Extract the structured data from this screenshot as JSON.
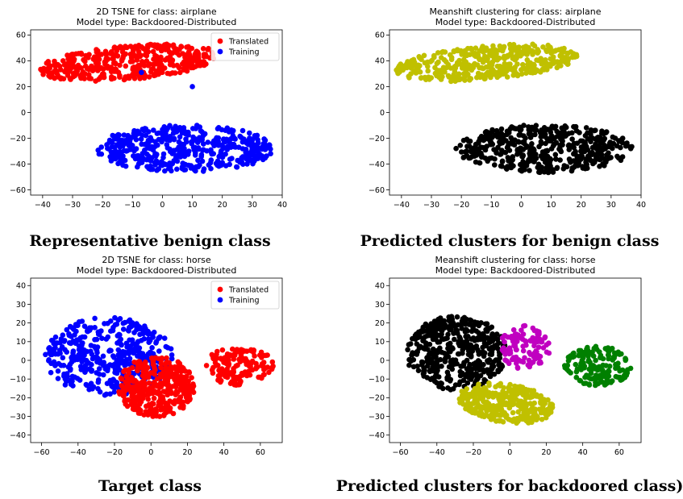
{
  "colors": {
    "red": "#ff0000",
    "blue": "#0000ff",
    "yellow": "#c0c000",
    "black": "#000000",
    "magenta": "#c000c0",
    "green": "#008000"
  },
  "captions": {
    "a": "Representative benign class",
    "b": "Predicted clusters for benign class",
    "c": "Target class",
    "d": "Predicted clusters for backdoored class)"
  },
  "chart_data": [
    {
      "type": "scatter",
      "title": "2D TSNE for class: airplane",
      "subtitle": "Model type: Backdoored-Distributed",
      "xlim": [
        -44,
        40
      ],
      "ylim": [
        -64,
        64
      ],
      "xticks": [
        -40,
        -30,
        -20,
        -10,
        0,
        10,
        20,
        30,
        40
      ],
      "yticks": [
        -60,
        -40,
        -20,
        0,
        20,
        40,
        60
      ],
      "legend": {
        "position": "top-right",
        "entries": [
          "Translated",
          "Training"
        ]
      },
      "clusters": [
        {
          "name": "Translated",
          "color": "red",
          "n": 420,
          "x_range": [
            -42,
            19
          ],
          "y_range": [
            17,
            60
          ],
          "skew": 0.48
        },
        {
          "name": "Training",
          "color": "blue",
          "n": 460,
          "x_range": [
            -22,
            37
          ],
          "y_range": [
            -58,
            2
          ],
          "skew": 0.0
        }
      ],
      "outliers": [
        {
          "x": -7,
          "y": 31,
          "color": "blue"
        },
        {
          "x": 10,
          "y": 20,
          "color": "blue"
        }
      ]
    },
    {
      "type": "scatter",
      "title": "Meanshift clustering for class: airplane",
      "subtitle": "Model type: Backdoored-Distributed",
      "xlim": [
        -44,
        40
      ],
      "ylim": [
        -64,
        64
      ],
      "xticks": [
        -40,
        -30,
        -20,
        -10,
        0,
        10,
        20,
        30,
        40
      ],
      "yticks": [
        -60,
        -40,
        -20,
        0,
        20,
        40,
        60
      ],
      "clusters": [
        {
          "color": "yellow",
          "n": 420,
          "x_range": [
            -42,
            19
          ],
          "y_range": [
            17,
            60
          ],
          "skew": 0.48
        },
        {
          "color": "black",
          "n": 460,
          "x_range": [
            -22,
            37
          ],
          "y_range": [
            -58,
            2
          ],
          "skew": 0.0
        }
      ]
    },
    {
      "type": "scatter",
      "title": "2D TSNE for class: horse",
      "subtitle": "Model type: Backdoored-Distributed",
      "xlim": [
        -66,
        72
      ],
      "ylim": [
        -44,
        44
      ],
      "xticks": [
        -60,
        -40,
        -20,
        0,
        20,
        40,
        60
      ],
      "yticks": [
        -40,
        -30,
        -20,
        -10,
        0,
        10,
        20,
        30,
        40
      ],
      "legend": {
        "position": "top-right",
        "entries": [
          "Translated",
          "Training"
        ]
      },
      "clusters": [
        {
          "name": "Training",
          "color": "blue",
          "n": 430,
          "x_range": [
            -58,
            12
          ],
          "y_range": [
            -32,
            36
          ],
          "skew": 0.0
        },
        {
          "name": "Translated",
          "color": "red",
          "n": 360,
          "x_range": [
            -18,
            24
          ],
          "y_range": [
            -40,
            12
          ],
          "skew": 0.0
        },
        {
          "name": "Translated",
          "color": "red",
          "n": 150,
          "x_range": [
            30,
            67
          ],
          "y_range": [
            -20,
            14
          ],
          "skew": 0.0
        }
      ]
    },
    {
      "type": "scatter",
      "title": "Meanshift clustering for class: horse",
      "subtitle": "Model type: Backdoored-Distributed",
      "xlim": [
        -66,
        72
      ],
      "ylim": [
        -44,
        44
      ],
      "xticks": [
        -60,
        -40,
        -20,
        0,
        20,
        40,
        60
      ],
      "yticks": [
        -40,
        -30,
        -20,
        -10,
        0,
        10,
        20,
        30,
        40
      ],
      "clusters": [
        {
          "color": "black",
          "n": 420,
          "x_range": [
            -57,
            -2
          ],
          "y_range": [
            -28,
            36
          ],
          "skew": 0.0
        },
        {
          "color": "magenta",
          "n": 110,
          "x_range": [
            -6,
            22
          ],
          "y_range": [
            -12,
            26
          ],
          "skew": 0.0
        },
        {
          "color": "yellow",
          "n": 340,
          "x_range": [
            -28,
            24
          ],
          "y_range": [
            -40,
            -6
          ],
          "skew": -0.3
        },
        {
          "color": "green",
          "n": 150,
          "x_range": [
            30,
            67
          ],
          "y_range": [
            -20,
            14
          ],
          "skew": 0.0
        }
      ]
    }
  ]
}
